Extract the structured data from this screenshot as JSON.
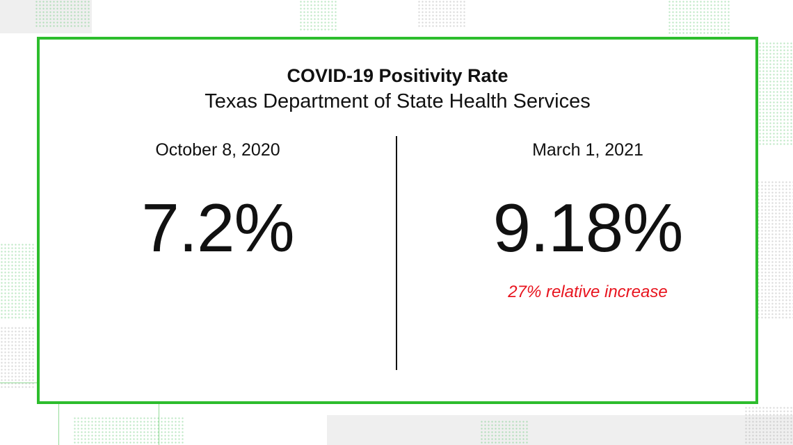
{
  "card": {
    "title": "COVID-19 Positivity Rate",
    "subtitle": "Texas Department of State Health Services",
    "left": {
      "date": "October 8, 2020",
      "value": "7.2%"
    },
    "right": {
      "date": "March 1, 2021",
      "value": "9.18%",
      "note": "27% relative increase"
    }
  },
  "colors": {
    "frame": "#2dbd2d",
    "accent_note": "#e8141e",
    "text": "#111111",
    "background": "#ffffff"
  }
}
